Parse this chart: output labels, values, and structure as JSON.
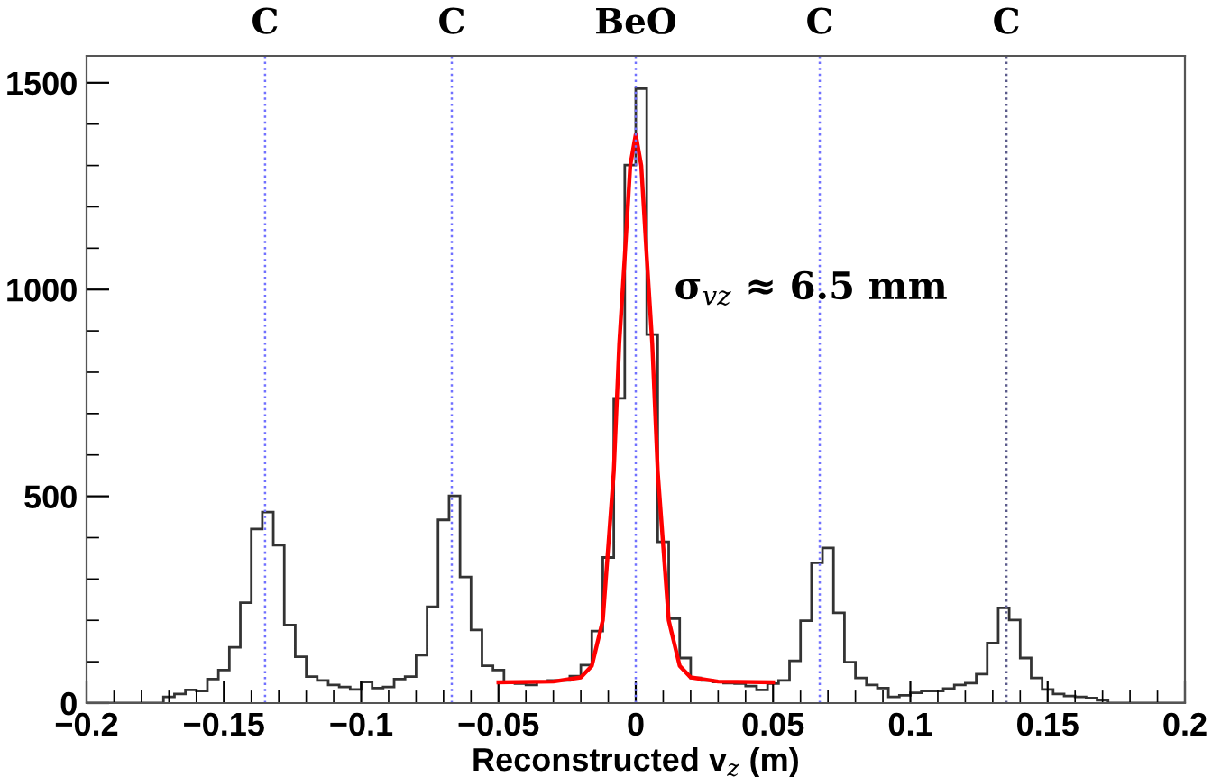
{
  "chart_data": {
    "type": "histogram",
    "xlabel": "Reconstructed v$_{z}$ (m)",
    "bins": [
      -0.2,
      -0.196,
      -0.192,
      -0.188,
      -0.184,
      -0.18,
      -0.176,
      -0.172,
      -0.168,
      -0.164,
      -0.16,
      -0.156,
      -0.152,
      -0.148,
      -0.144,
      -0.14,
      -0.136,
      -0.132,
      -0.128,
      -0.124,
      -0.12,
      -0.116,
      -0.112,
      -0.108,
      -0.104,
      -0.1,
      -0.096,
      -0.092,
      -0.088,
      -0.084,
      -0.08,
      -0.076,
      -0.072,
      -0.068,
      -0.064,
      -0.06,
      -0.056,
      -0.052,
      -0.048,
      -0.044,
      -0.04,
      -0.036,
      -0.032,
      -0.028,
      -0.024,
      -0.02,
      -0.016,
      -0.012,
      -0.008,
      -0.004,
      0,
      0.004,
      0.008,
      0.012,
      0.016,
      0.02,
      0.024,
      0.028,
      0.032,
      0.036,
      0.04,
      0.044,
      0.048,
      0.052,
      0.056,
      0.06,
      0.064,
      0.068,
      0.072,
      0.076,
      0.08,
      0.084,
      0.088,
      0.092,
      0.096,
      0.1,
      0.104,
      0.108,
      0.112,
      0.116,
      0.12,
      0.124,
      0.128,
      0.132,
      0.136,
      0.14,
      0.144,
      0.148,
      0.152,
      0.156,
      0.16,
      0.164,
      0.168,
      0.172,
      0.176,
      0.18,
      0.184,
      0.188,
      0.192,
      0.196,
      0.2
    ],
    "values": [
      0,
      0,
      0,
      0,
      0,
      0,
      0,
      15,
      22,
      32,
      29,
      58,
      80,
      135,
      243,
      421,
      462,
      382,
      189,
      112,
      64,
      55,
      44,
      39,
      33,
      51,
      36,
      39,
      58,
      64,
      116,
      233,
      443,
      501,
      305,
      177,
      90,
      80,
      51,
      47,
      44,
      51,
      55,
      55,
      65,
      92,
      174,
      352,
      737,
      1301,
      1486,
      891,
      390,
      204,
      109,
      61,
      55,
      51,
      48,
      47,
      41,
      32,
      47,
      55,
      102,
      199,
      339,
      375,
      218,
      99,
      61,
      44,
      36,
      15,
      19,
      25,
      29,
      29,
      35,
      44,
      48,
      70,
      145,
      230,
      201,
      109,
      61,
      33,
      22,
      17,
      15,
      12,
      7,
      0,
      0,
      0,
      0,
      0,
      0,
      0
    ],
    "color": "#333333",
    "series": [
      {
        "type": "line",
        "color": "#ff0000",
        "x": [
          -0.05,
          -0.03,
          -0.02,
          -0.016,
          -0.012,
          -0.008,
          -0.006,
          -0.004,
          -0.002,
          0,
          0.002,
          0.004,
          0.006,
          0.008,
          0.012,
          0.016,
          0.02,
          0.03,
          0.05
        ],
        "values": [
          50,
          52,
          62,
          90,
          200,
          560,
          870,
          1080,
          1300,
          1375,
          1300,
          1080,
          870,
          560,
          200,
          90,
          62,
          52,
          50
        ]
      }
    ],
    "xlim": [
      -0.2,
      0.2
    ],
    "xticks": [
      {
        "value": -0.2,
        "label": "−0.2"
      },
      {
        "value": -0.15,
        "label": "−0.15"
      },
      {
        "value": -0.1,
        "label": "−0.1"
      },
      {
        "value": -0.05,
        "label": "−0.05"
      },
      0,
      0.05,
      0.1,
      0.15,
      0.2
    ],
    "ylim": [
      0,
      1565
    ],
    "yticks": [
      0,
      500,
      1000,
      1500
    ],
    "grid": false,
    "legend": false,
    "ref_lines": [
      {
        "axis": "x",
        "value": -0.135,
        "label": "C",
        "color": "#7070ff",
        "line_style": "dotted"
      },
      {
        "axis": "x",
        "value": -0.067,
        "label": "C",
        "color": "#7070ff",
        "line_style": "dotted"
      },
      {
        "axis": "x",
        "value": 0,
        "label": "BeO",
        "color": "#7070ff",
        "line_style": "dotted"
      },
      {
        "axis": "x",
        "value": 0.067,
        "label": "C",
        "color": "#7070ff",
        "line_style": "dotted"
      },
      {
        "axis": "x",
        "value": 0.135,
        "label": "C",
        "color": "#5a5a8a",
        "line_style": "dotted"
      }
    ],
    "annotations": [
      "σ$_{vz}$ ≈ 6.5 mm"
    ]
  }
}
